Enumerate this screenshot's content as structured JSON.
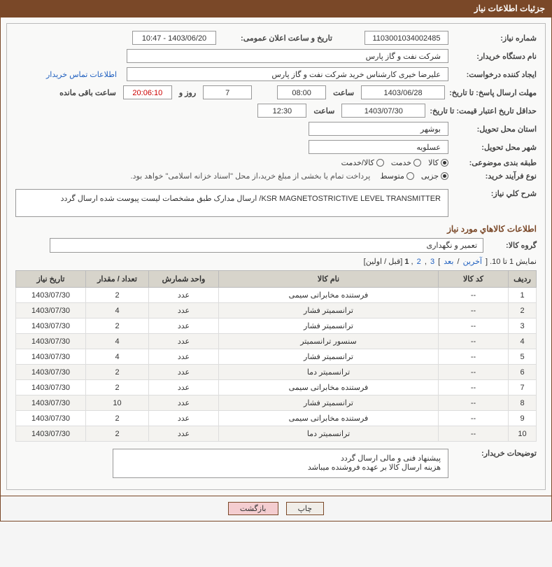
{
  "header": {
    "title": "جزئیات اطلاعات نیاز"
  },
  "fields": {
    "need_number_label": "شماره نیاز:",
    "need_number": "1103001034002485",
    "announce_date_label": "تاریخ و ساعت اعلان عمومی:",
    "announce_date": "1403/06/20 - 10:47",
    "buyer_org_label": "نام دستگاه خریدار:",
    "buyer_org": "شرکت نفت و گاز پارس",
    "requester_label": "ایجاد کننده درخواست:",
    "requester": "علیرضا  خیری کارشناس خرید  شرکت نفت و گاز پارس",
    "contact_link": "اطلاعات تماس خریدار",
    "reply_deadline_label": "مهلت ارسال پاسخ: تا تاریخ:",
    "reply_deadline_date": "1403/06/28",
    "time_label": "ساعت",
    "reply_deadline_time": "08:00",
    "days_remain": "7",
    "days_word": "روز و",
    "hours_remain": "20:06:10",
    "remain_suffix": "ساعت باقی مانده",
    "price_validity_label": "حداقل تاریخ اعتبار قیمت: تا تاریخ:",
    "price_validity_date": "1403/07/30",
    "price_validity_time": "12:30",
    "delivery_province_label": "استان محل تحویل:",
    "delivery_province": "بوشهر",
    "delivery_city_label": "شهر محل تحویل:",
    "delivery_city": "عسلویه",
    "category_label": "طبقه بندی موضوعی:",
    "cat_goods": "کالا",
    "cat_service": "خدمت",
    "cat_goods_service": "کالا/خدمت",
    "purchase_type_label": "نوع فرآیند خرید:",
    "pt_partial": "جزیی",
    "pt_medium": "متوسط",
    "treasury_note": "پرداخت تمام یا بخشی از مبلغ خرید،از محل \"اسناد خزانه اسلامی\" خواهد بود.",
    "description_label": "شرح کلي نیاز:",
    "description": "KSR MAGNETOSTRICTIVE LEVEL TRANSMITTER/ ارسال مدارک طبق مشخصات لیست پیوست شده ارسال گردد",
    "goods_info_title": "اطلاعات كالاهاي مورد نیاز",
    "goods_group_label": "گروه کالا:",
    "goods_group": "تعمیر و نگهداری",
    "pagination_text": "نمایش 1 تا 10.",
    "pag_last": "آخرین",
    "pag_next": "بعد",
    "pag_3": "3",
    "pag_2": "2",
    "pag_1": "1",
    "pag_prev": "قبل",
    "pag_first": "اولین",
    "notes_label": "توضیحات خریدار:",
    "notes_line1": "پیشنهاد فنی و مالی ارسال گردد",
    "notes_line2": "هزینه ارسال کالا بر عهده فروشنده میباشد"
  },
  "buttons": {
    "print": "چاپ",
    "back": "بازگشت"
  },
  "table": {
    "cols": [
      "ردیف",
      "کد کالا",
      "نام کالا",
      "واحد شمارش",
      "تعداد / مقدار",
      "تاریخ نیاز"
    ],
    "rows": [
      [
        "1",
        "--",
        "فرستنده مخابراتی سیمی",
        "عدد",
        "2",
        "1403/07/30"
      ],
      [
        "2",
        "--",
        "ترانسمیتر فشار",
        "عدد",
        "4",
        "1403/07/30"
      ],
      [
        "3",
        "--",
        "ترانسمیتر فشار",
        "عدد",
        "2",
        "1403/07/30"
      ],
      [
        "4",
        "--",
        "سنسور ترانسمیتر",
        "عدد",
        "4",
        "1403/07/30"
      ],
      [
        "5",
        "--",
        "ترانسمیتر فشار",
        "عدد",
        "4",
        "1403/07/30"
      ],
      [
        "6",
        "--",
        "ترانسمیتر دما",
        "عدد",
        "2",
        "1403/07/30"
      ],
      [
        "7",
        "--",
        "فرستنده مخابراتی سیمی",
        "عدد",
        "2",
        "1403/07/30"
      ],
      [
        "8",
        "--",
        "ترانسمیتر فشار",
        "عدد",
        "10",
        "1403/07/30"
      ],
      [
        "9",
        "--",
        "فرستنده مخابراتی سیمی",
        "عدد",
        "2",
        "1403/07/30"
      ],
      [
        "10",
        "--",
        "ترانسمیتر دما",
        "عدد",
        "2",
        "1403/07/30"
      ]
    ]
  },
  "styling": {
    "header_bg": "#7a4828",
    "header_text": "#ffffff",
    "body_bg": "#f5f5f5",
    "box_bg": "#f9f9f8",
    "table_header_bg": "#d7d4cb",
    "table_row_even": "#f4f3f0",
    "table_row_odd": "#ffffff",
    "link_color": "#2060c0",
    "btn_back_bg": "#f4cdd0",
    "font_family": "Tahoma",
    "base_font_size": 11
  }
}
